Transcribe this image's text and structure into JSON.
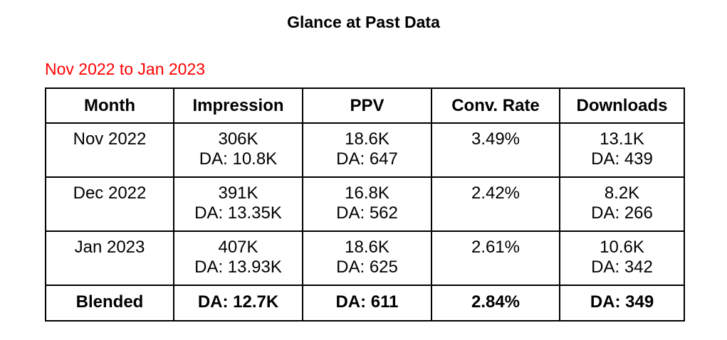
{
  "page": {
    "title": "Glance at Past Data",
    "subtitle": "Nov 2022 to Jan 2023",
    "colors": {
      "subtitle": "#ff0000",
      "text": "#000000",
      "border": "#000000",
      "background": "#ffffff"
    }
  },
  "table": {
    "columns": [
      "Month",
      "Impression",
      "PPV",
      "Conv. Rate",
      "Downloads"
    ],
    "rows": [
      {
        "month": "Nov 2022",
        "impression": {
          "main": "306K",
          "da": "DA: 10.8K"
        },
        "ppv": {
          "main": "18.6K",
          "da": "DA: 647"
        },
        "conv_rate": "3.49%",
        "downloads": {
          "main": "13.1K",
          "da": "DA: 439"
        }
      },
      {
        "month": "Dec 2022",
        "impression": {
          "main": "391K",
          "da": "DA: 13.35K"
        },
        "ppv": {
          "main": "16.8K",
          "da": "DA: 562"
        },
        "conv_rate": "2.42%",
        "downloads": {
          "main": "8.2K",
          "da": "DA: 266"
        }
      },
      {
        "month": "Jan 2023",
        "impression": {
          "main": "407K",
          "da": "DA: 13.93K"
        },
        "ppv": {
          "main": "18.6K",
          "da": "DA: 625"
        },
        "conv_rate": "2.61%",
        "downloads": {
          "main": "10.6K",
          "da": "DA: 342"
        }
      }
    ],
    "summary": {
      "month": "Blended",
      "impression": "DA: 12.7K",
      "ppv": "DA: 611",
      "conv_rate": "2.84%",
      "downloads": "DA: 349"
    }
  },
  "chart_data": {
    "type": "table",
    "title": "Glance at Past Data",
    "subtitle": "Nov 2022 to Jan 2023",
    "columns": [
      "Month",
      "Impression",
      "PPV",
      "Conv. Rate",
      "Downloads"
    ],
    "rows": [
      [
        "Nov 2022",
        "306K | DA: 10.8K",
        "18.6K | DA: 647",
        "3.49%",
        "13.1K | DA: 439"
      ],
      [
        "Dec 2022",
        "391K | DA: 13.35K",
        "16.8K | DA: 562",
        "2.42%",
        "8.2K | DA: 266"
      ],
      [
        "Jan 2023",
        "407K | DA: 13.93K",
        "18.6K | DA: 625",
        "2.61%",
        "10.6K | DA: 342"
      ],
      [
        "Blended",
        "DA: 12.7K",
        "DA: 611",
        "2.84%",
        "DA: 349"
      ]
    ]
  }
}
